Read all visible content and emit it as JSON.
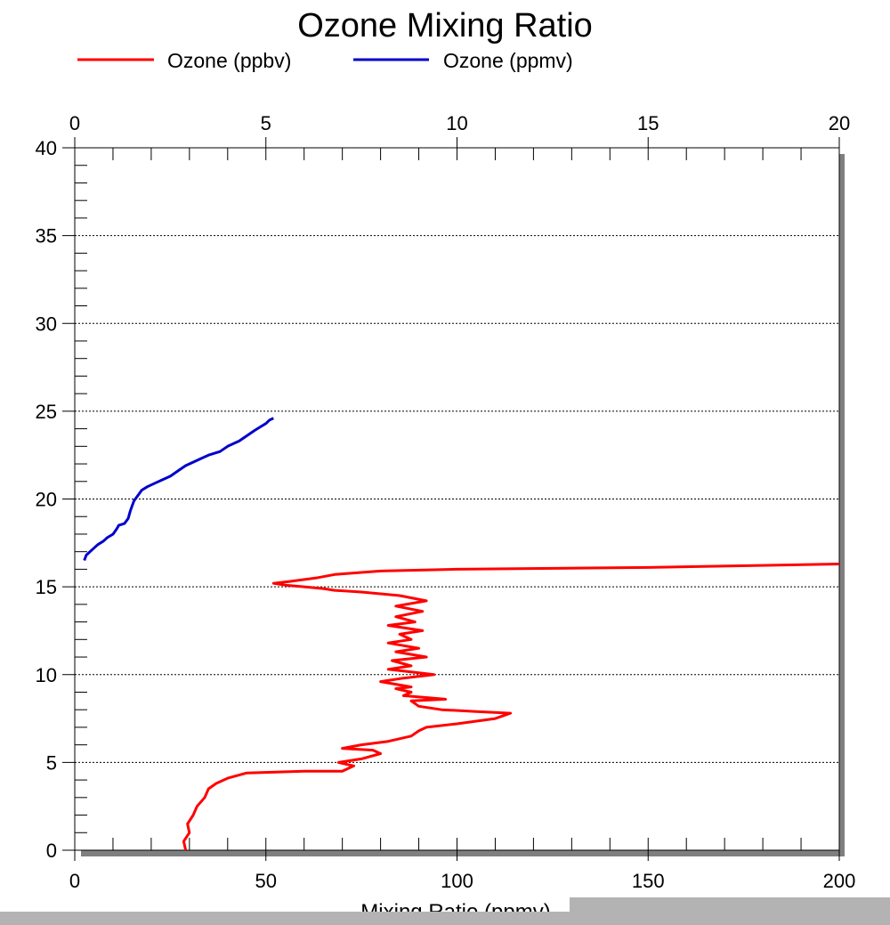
{
  "chart_data": {
    "type": "line",
    "title": "Ozone Mixing Ratio",
    "xlabel": "Mixing Ratio (ppmv)",
    "ylabel": "",
    "ylim": [
      0,
      40
    ],
    "y_ticks": [
      0,
      5,
      10,
      15,
      20,
      25,
      30,
      35,
      40
    ],
    "x_bottom": {
      "lim": [
        0,
        200
      ],
      "ticks": [
        0,
        50,
        100,
        150,
        200
      ]
    },
    "x_top": {
      "lim": [
        0,
        20
      ],
      "ticks": [
        0,
        5,
        10,
        15,
        20
      ]
    },
    "grid": "horizontal-dotted",
    "legend_position": "top",
    "series": [
      {
        "name": "Ozone (ppbv)",
        "axis": "bottom",
        "color": "#ff0000",
        "points": [
          [
            29,
            0.0
          ],
          [
            28.5,
            0.5
          ],
          [
            30,
            1.0
          ],
          [
            29.5,
            1.5
          ],
          [
            31,
            2.0
          ],
          [
            32,
            2.5
          ],
          [
            34,
            3.0
          ],
          [
            35,
            3.5
          ],
          [
            37,
            3.8
          ],
          [
            40,
            4.1
          ],
          [
            45,
            4.4
          ],
          [
            60,
            4.5
          ],
          [
            70,
            4.5
          ],
          [
            73,
            4.8
          ],
          [
            69,
            5.0
          ],
          [
            75,
            5.2
          ],
          [
            80,
            5.5
          ],
          [
            78,
            5.7
          ],
          [
            70,
            5.8
          ],
          [
            75,
            6.0
          ],
          [
            82,
            6.2
          ],
          [
            88,
            6.5
          ],
          [
            90,
            6.8
          ],
          [
            92,
            7.0
          ],
          [
            100,
            7.2
          ],
          [
            110,
            7.5
          ],
          [
            114,
            7.8
          ],
          [
            105,
            7.9
          ],
          [
            96,
            8.0
          ],
          [
            90,
            8.2
          ],
          [
            88,
            8.5
          ],
          [
            97,
            8.6
          ],
          [
            86,
            8.8
          ],
          [
            88,
            9.0
          ],
          [
            84,
            9.2
          ],
          [
            88,
            9.3
          ],
          [
            80,
            9.6
          ],
          [
            86,
            9.8
          ],
          [
            94,
            10.0
          ],
          [
            82,
            10.3
          ],
          [
            88,
            10.5
          ],
          [
            83,
            10.8
          ],
          [
            92,
            11.0
          ],
          [
            84,
            11.3
          ],
          [
            90,
            11.5
          ],
          [
            82,
            11.8
          ],
          [
            88,
            12.0
          ],
          [
            85,
            12.3
          ],
          [
            91,
            12.5
          ],
          [
            82,
            12.8
          ],
          [
            89,
            13.0
          ],
          [
            84,
            13.3
          ],
          [
            91,
            13.6
          ],
          [
            84,
            13.9
          ],
          [
            92,
            14.2
          ],
          [
            85,
            14.5
          ],
          [
            75,
            14.7
          ],
          [
            68,
            14.8
          ],
          [
            65,
            14.9
          ],
          [
            60,
            15.0
          ],
          [
            55,
            15.1
          ],
          [
            52,
            15.2
          ],
          [
            56,
            15.3
          ],
          [
            63,
            15.5
          ],
          [
            68,
            15.7
          ],
          [
            80,
            15.9
          ],
          [
            100,
            16.0
          ],
          [
            150,
            16.1
          ],
          [
            200,
            16.3
          ]
        ]
      },
      {
        "name": "Ozone (ppmv)",
        "axis": "top",
        "color": "#0000cc",
        "points": [
          [
            0.25,
            16.5
          ],
          [
            0.3,
            16.8
          ],
          [
            0.45,
            17.1
          ],
          [
            0.6,
            17.4
          ],
          [
            0.75,
            17.6
          ],
          [
            0.85,
            17.8
          ],
          [
            1.0,
            18.0
          ],
          [
            1.1,
            18.3
          ],
          [
            1.15,
            18.5
          ],
          [
            1.3,
            18.6
          ],
          [
            1.4,
            18.9
          ],
          [
            1.45,
            19.3
          ],
          [
            1.5,
            19.6
          ],
          [
            1.55,
            19.9
          ],
          [
            1.65,
            20.2
          ],
          [
            1.75,
            20.5
          ],
          [
            1.9,
            20.7
          ],
          [
            2.1,
            20.9
          ],
          [
            2.3,
            21.1
          ],
          [
            2.5,
            21.3
          ],
          [
            2.7,
            21.6
          ],
          [
            2.9,
            21.9
          ],
          [
            3.1,
            22.1
          ],
          [
            3.3,
            22.3
          ],
          [
            3.5,
            22.5
          ],
          [
            3.8,
            22.7
          ],
          [
            4.0,
            23.0
          ],
          [
            4.3,
            23.3
          ],
          [
            4.5,
            23.6
          ],
          [
            4.7,
            23.9
          ],
          [
            4.85,
            24.1
          ],
          [
            5.0,
            24.3
          ],
          [
            5.1,
            24.5
          ],
          [
            5.2,
            24.6
          ]
        ]
      }
    ]
  }
}
